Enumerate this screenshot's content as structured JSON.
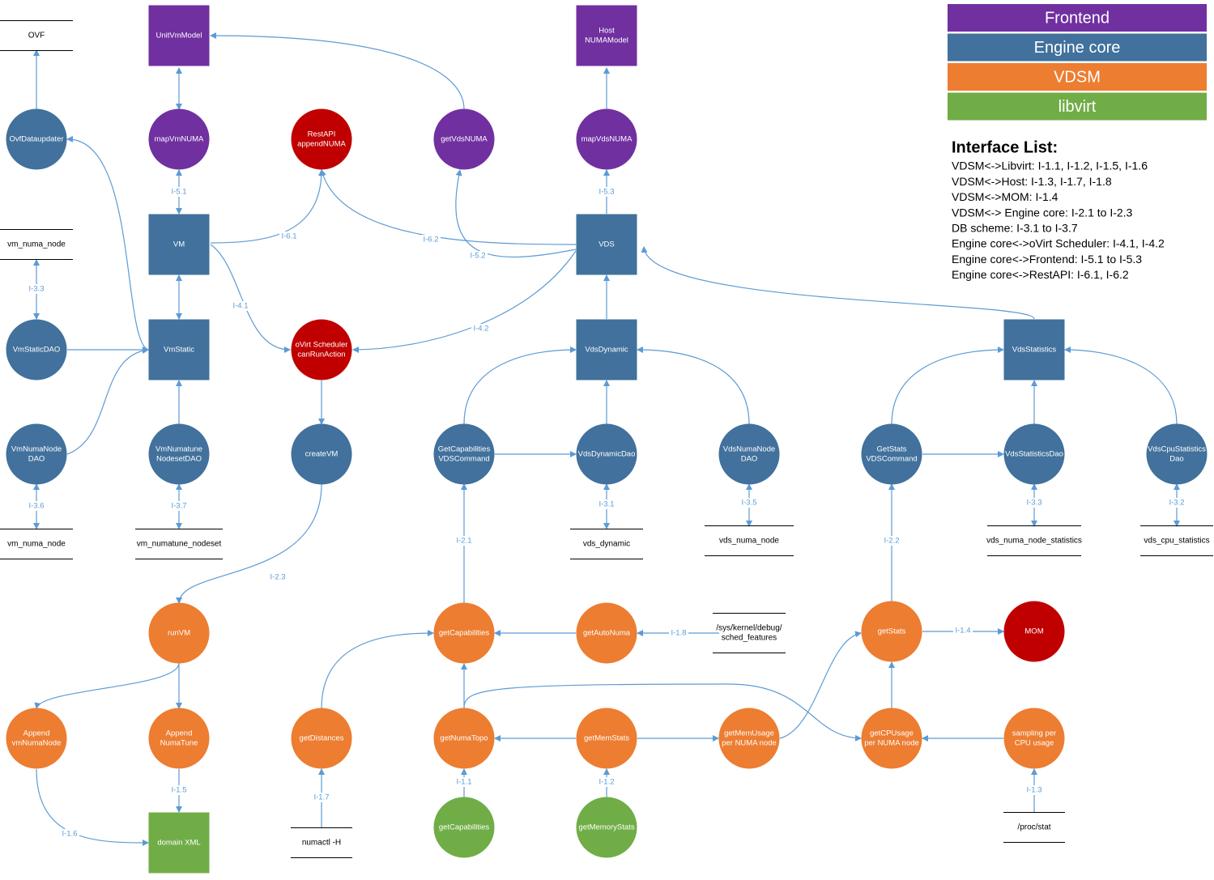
{
  "legend": [
    "Frontend",
    "Engine core",
    "VDSM",
    "libvirt"
  ],
  "interface_list": {
    "title": "Interface List:",
    "items": [
      "VDSM<->Libvirt: I-1.1, I-1.2, I-1.5, I-1.6",
      "VDSM<->Host: I-1.3, I-1.7, I-1.8",
      "VDSM<->MOM: I-1.4",
      "VDSM<-> Engine core: I-2.1 to I-2.3",
      "DB scheme: I-3.1 to I-3.7",
      "Engine core<->oVirt Scheduler: I-4.1, I-4.2",
      "Engine core<->Frontend: I-5.1 to I-5.3",
      "Engine core<->RestAPI: I-6.1, I-6.2"
    ]
  },
  "nodes": [
    {
      "label": [
        "UnitVmModel"
      ]
    },
    {
      "label": [
        "Host",
        "NUMAModel"
      ]
    },
    {
      "label": [
        "mapVmNUMA"
      ]
    },
    {
      "label": [
        "getVdsNUMA"
      ]
    },
    {
      "label": [
        "mapVdsNUMA"
      ]
    },
    {
      "label": [
        "RestAPI",
        "appendNUMA"
      ]
    },
    {
      "label": [
        "oVirt Scheduler",
        "canRunAction"
      ]
    },
    {
      "label": [
        "MOM"
      ]
    },
    {
      "label": [
        "OvfDataupdater"
      ]
    },
    {
      "label": [
        "VM"
      ]
    },
    {
      "label": [
        "VDS"
      ]
    },
    {
      "label": [
        "VmStaticDAO"
      ]
    },
    {
      "label": [
        "VmStatic"
      ]
    },
    {
      "label": [
        "VdsDynamic"
      ]
    },
    {
      "label": [
        "VdsStatistics"
      ]
    },
    {
      "label": [
        "VmNumaNode",
        "DAO"
      ]
    },
    {
      "label": [
        "VmNumatune",
        "NodesetDAO"
      ]
    },
    {
      "label": [
        "createVM"
      ]
    },
    {
      "label": [
        "GetCapabilities",
        "VDSCommand"
      ]
    },
    {
      "label": [
        "VdsDynamicDao"
      ]
    },
    {
      "label": [
        "VdsNumaNode",
        "DAO"
      ]
    },
    {
      "label": [
        "GetStats",
        "VDSCommand"
      ]
    },
    {
      "label": [
        "VdsStatisticsDao"
      ]
    },
    {
      "label": [
        "VdsCpuStatistics",
        "Dao"
      ]
    },
    {
      "label": [
        "runVM"
      ]
    },
    {
      "label": [
        "getCapabilities"
      ]
    },
    {
      "label": [
        "getAutoNuma"
      ]
    },
    {
      "label": [
        "getStats"
      ]
    },
    {
      "label": [
        "Append",
        "vmNumaNode"
      ]
    },
    {
      "label": [
        "Append",
        "NumaTune"
      ]
    },
    {
      "label": [
        "getDistances"
      ]
    },
    {
      "label": [
        "getNumaTopo"
      ]
    },
    {
      "label": [
        "getMemStats"
      ]
    },
    {
      "label": [
        "getMemUsage",
        "per NUMA node"
      ]
    },
    {
      "label": [
        "getCPUsage",
        "per NUMA node"
      ]
    },
    {
      "label": [
        "sampling per",
        "CPU usage"
      ]
    },
    {
      "label": [
        "domain XML"
      ]
    },
    {
      "label": [
        "getCapabilities"
      ]
    },
    {
      "label": [
        "getMemoryStats"
      ]
    },
    {
      "label": [
        "OVF"
      ]
    },
    {
      "label": [
        "vm_numa_node"
      ]
    },
    {
      "label": [
        "vm_numa_node"
      ]
    },
    {
      "label": [
        "vm_numatune_nodeset"
      ]
    },
    {
      "label": [
        "vds_dynamic"
      ]
    },
    {
      "label": [
        "vds_numa_node"
      ]
    },
    {
      "label": [
        "vds_numa_node_statistics"
      ]
    },
    {
      "label": [
        "vds_cpu_statistics"
      ]
    },
    {
      "label": [
        "/sys/kernel/debug/",
        "sched_features"
      ]
    },
    {
      "label": [
        "numactl -H"
      ]
    },
    {
      "label": [
        "/proc/stat"
      ]
    }
  ],
  "edge_labels": [
    "I-5.1",
    "I-6.1",
    "I-6.2",
    "I-5.2",
    "I-5.3",
    "I-4.1",
    "I-4.2",
    "I-3.3",
    "I-3.6",
    "I-3.7",
    "I-3.1",
    "I-3.5",
    "I-3.3",
    "I-3.2",
    "I-2.1",
    "I-2.2",
    "I-2.3",
    "I-1.8",
    "I-1.4",
    "I-1.5",
    "I-1.6",
    "I-1.7",
    "I-1.1",
    "I-1.2",
    "I-1.3"
  ]
}
